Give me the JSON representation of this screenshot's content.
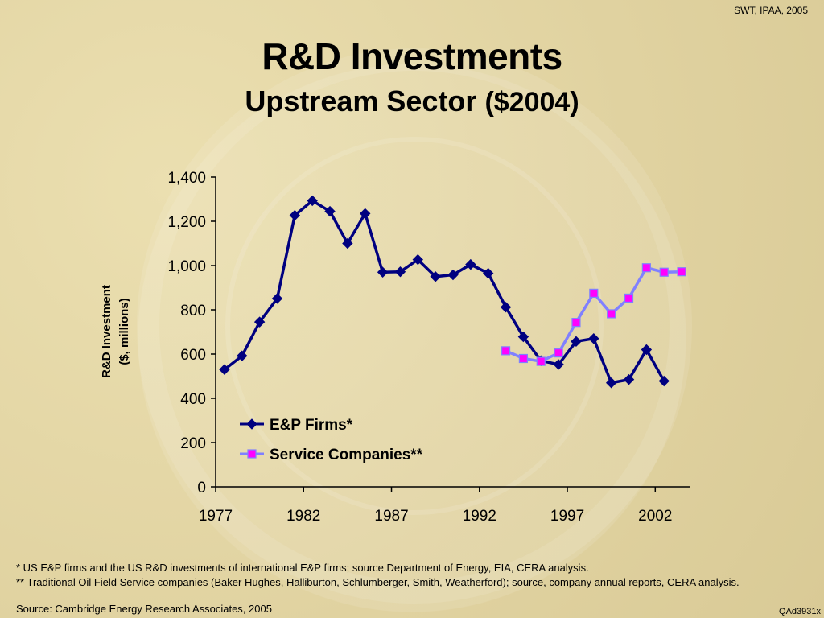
{
  "header": {
    "corner_note": "SWT, IPAA, 2005",
    "title": "R&D Investments",
    "subtitle_main": "Upstream Sector",
    "subtitle_unit": "($2004)"
  },
  "colors": {
    "ep_firms": "#000080",
    "service_companies_line": "#8080ff",
    "service_companies_marker": "#ff00ff"
  },
  "chart_data": {
    "type": "line",
    "title": "R&D Investments Upstream Sector ($2004)",
    "ylabel": "R&D Investment ($, millions)",
    "ylabel_lines": [
      "R&D Investment",
      "($, millions)"
    ],
    "xlabel": "",
    "ylim": [
      0,
      1400
    ],
    "xlim": [
      1977,
      2004
    ],
    "y_ticks": [
      0,
      200,
      400,
      600,
      800,
      1000,
      1200,
      1400
    ],
    "y_tick_labels": [
      "0",
      "200",
      "400",
      "600",
      "800",
      "1,000",
      "1,200",
      "1,400"
    ],
    "x_ticks": [
      1977,
      1982,
      1987,
      1992,
      1997,
      2002
    ],
    "x_tick_labels": [
      "1977",
      "1982",
      "1987",
      "1992",
      "1997",
      "2002"
    ],
    "legend_position": "lower-left inside",
    "grid": false,
    "series": [
      {
        "name": "E&P Firms*",
        "marker": "diamond",
        "x": [
          1977.5,
          1978.5,
          1979.5,
          1980.5,
          1981.5,
          1982.5,
          1983.5,
          1984.5,
          1985.5,
          1986.5,
          1987.5,
          1988.5,
          1989.5,
          1990.5,
          1991.5,
          1992.5,
          1993.5,
          1994.5,
          1995.5,
          1996.5,
          1997.5,
          1998.5,
          1999.5,
          2000.5,
          2001.5,
          2002.5
        ],
        "values": [
          530,
          592,
          745,
          851,
          1227,
          1293,
          1245,
          1100,
          1235,
          970,
          972,
          1027,
          950,
          958,
          1005,
          965,
          812,
          678,
          570,
          553,
          657,
          670,
          470,
          485,
          620,
          478
        ]
      },
      {
        "name": "Service Companies**",
        "marker": "square",
        "x": [
          1993.5,
          1994.5,
          1995.5,
          1996.5,
          1997.5,
          1998.5,
          1999.5,
          2000.5,
          2001.5,
          2002.5,
          2003.5
        ],
        "values": [
          615,
          580,
          567,
          605,
          743,
          875,
          782,
          853,
          990,
          970,
          972
        ]
      }
    ]
  },
  "footnotes": {
    "line1": "* US E&P firms and the US R&D investments of international E&P firms; source Department of Energy, EIA, CERA analysis.",
    "line2": "** Traditional Oil Field Service companies (Baker Hughes, Halliburton, Schlumberger, Smith, Weatherford); source, company annual reports, CERA analysis."
  },
  "source": "Source: Cambridge Energy Research Associates, 2005",
  "slide_code": "QAd3931x"
}
